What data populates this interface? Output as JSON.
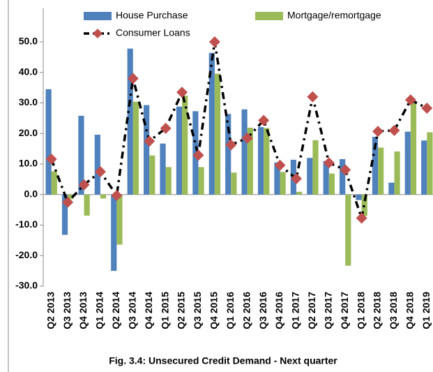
{
  "chart_data": {
    "type": "bar-line",
    "title": "Fig. 3.4: Unsecured Credit Demand - Next quarter",
    "categories": [
      "Q2 2013",
      "Q3 2013",
      "Q4 2013",
      "Q1 2014",
      "Q2 2014",
      "Q3 2014",
      "Q4 2014",
      "Q1 2015",
      "Q2 2015",
      "Q3 2015",
      "Q4 2015",
      "Q1 2016",
      "Q2 2016",
      "Q3 2016",
      "Q4 2016",
      "Q1 2017",
      "Q2 2017",
      "Q3 2017",
      "Q4 2017",
      "Q1 2018",
      "Q2 2018",
      "Q3 2018",
      "Q4 2018",
      "Q1 2019"
    ],
    "series": [
      {
        "name": "House Purchase",
        "type": "bar",
        "color": "#4f81bd",
        "values": [
          34.5,
          -13.2,
          25.8,
          19.6,
          -25.0,
          47.8,
          29.3,
          16.7,
          28.8,
          27.3,
          46.4,
          26.4,
          27.9,
          22.1,
          10.5,
          11.4,
          12.0,
          11.0,
          11.6,
          -1.8,
          18.9,
          3.9,
          20.6,
          17.7
        ]
      },
      {
        "name": "Mortgage/remortgage",
        "type": "bar",
        "color": "#9bbb59",
        "values": [
          7.6,
          -1.5,
          -6.9,
          -1.3,
          -16.4,
          30.4,
          12.8,
          9.0,
          32.4,
          9.0,
          39.6,
          7.2,
          21.9,
          21.8,
          7.4,
          0.9,
          17.8,
          6.9,
          -23.3,
          -7.0,
          15.4,
          14.1,
          30.6,
          20.4
        ]
      },
      {
        "name": "Consumer Loans",
        "type": "line",
        "color": "#000000",
        "marker_color": "#c0504d",
        "values": [
          11.6,
          -2.5,
          3.2,
          7.5,
          -0.3,
          38.0,
          17.5,
          21.7,
          33.5,
          12.9,
          50.0,
          16.3,
          18.5,
          24.3,
          9.6,
          5.2,
          32.0,
          10.4,
          8.1,
          -7.7,
          20.7,
          21.0,
          31.0,
          28.3
        ]
      }
    ],
    "ylim": [
      -30,
      50
    ],
    "yticks": [
      {
        "value": -30,
        "label": "-30.0"
      },
      {
        "value": -20,
        "label": "-20.0"
      },
      {
        "value": -10,
        "label": "-10.0"
      },
      {
        "value": 0,
        "label": "0.0"
      },
      {
        "value": 10,
        "label": "10.0"
      },
      {
        "value": 20,
        "label": "20.0"
      },
      {
        "value": 30,
        "label": "30.0"
      },
      {
        "value": 40,
        "label": "40.0"
      },
      {
        "value": 50,
        "label": "50.0"
      }
    ],
    "grid": false
  }
}
